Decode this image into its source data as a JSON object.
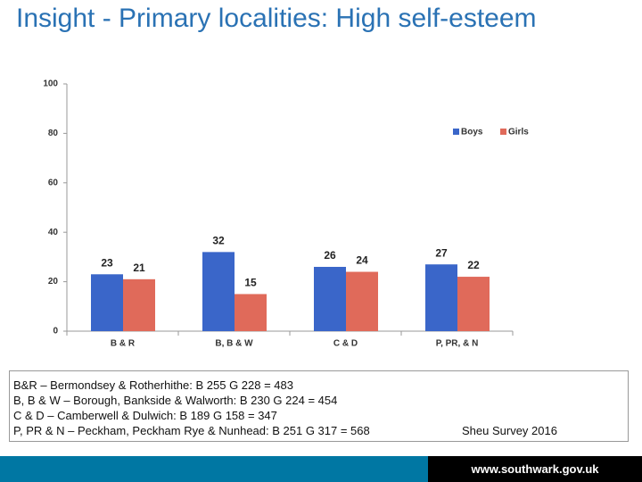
{
  "title": "Insight - Primary localities: High self-esteem",
  "chart_data": {
    "type": "bar",
    "categories": [
      "B & R",
      "B, B & W",
      "C & D",
      "P, PR, & N"
    ],
    "series": [
      {
        "name": "Boys",
        "color": "#3a66c9",
        "values": [
          23,
          32,
          26,
          27
        ]
      },
      {
        "name": "Girls",
        "color": "#e06a5a",
        "values": [
          21,
          15,
          24,
          22
        ]
      }
    ],
    "ylim": [
      0,
      100
    ],
    "yticks": [
      0,
      20,
      40,
      60,
      80,
      100
    ]
  },
  "notes": [
    "B&R – Bermondsey & Rotherhithe: B 255 G 228 = 483",
    "B, B & W – Borough, Bankside & Walworth: B 230 G 224 = 454",
    "C & D – Camberwell & Dulwich: B 189  G 158 = 347",
    "P, PR & N – Peckham, Peckham Rye & Nunhead: B 251  G 317 = 568"
  ],
  "source": "Sheu Survey 2016",
  "footer": "www.southwark.gov.uk"
}
